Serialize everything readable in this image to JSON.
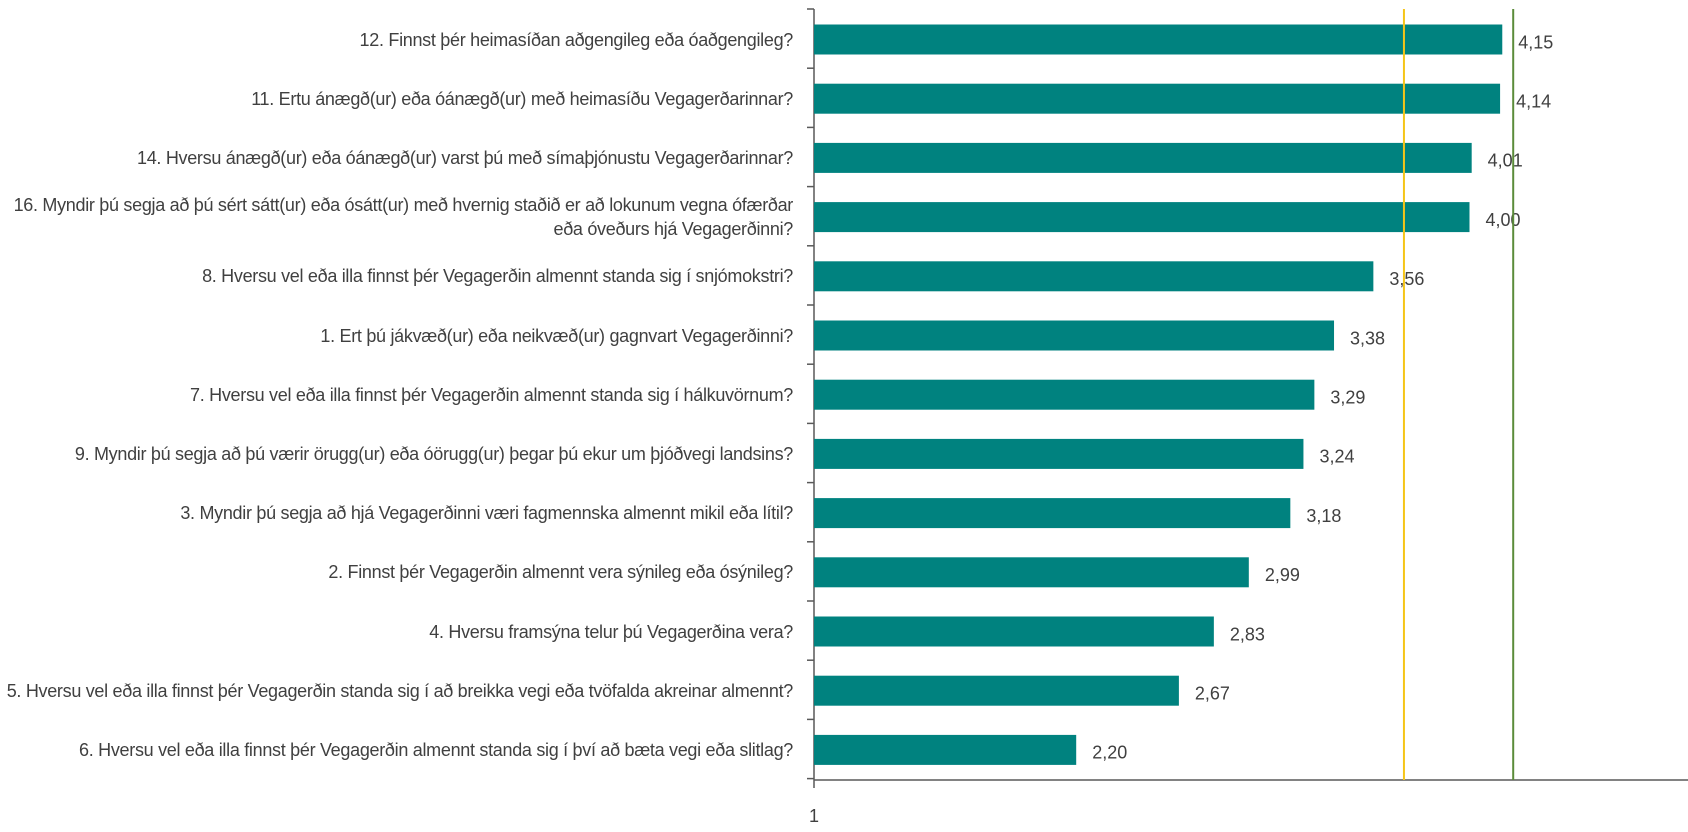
{
  "chart_data": {
    "type": "bar",
    "orientation": "horizontal",
    "categories": [
      "12. Finnst þér heimasíðan aðgengileg eða óaðgengileg?",
      "11. Ertu ánægð(ur) eða óánægð(ur) með heimasíðu Vegagerðarinnar?",
      "14. Hversu ánægð(ur) eða óánægð(ur) varst þú með símaþjónustu Vegagerðarinnar?",
      "16. Myndir þú segja að þú sért sátt(ur) eða ósátt(ur) með hvernig staðið er að lokunum vegna ófærðar eða óveðurs hjá Vegagerðinni?",
      "8. Hversu vel eða illa finnst þér Vegagerðin almennt standa sig í snjómokstri?",
      "1. Ert þú jákvæð(ur) eða neikvæð(ur) gagnvart Vegagerðinni?",
      "7. Hversu vel eða illa finnst þér Vegagerðin almennt standa sig í hálkuvörnum?",
      "9. Myndir þú segja að þú værir örugg(ur) eða óörugg(ur) þegar þú ekur um þjóðvegi landsins?",
      "3. Myndir þú segja að hjá Vegagerðinni væri fagmennska almennt mikil eða lítil?",
      "2. Finnst þér Vegagerðin almennt vera sýnileg eða ósýnileg?",
      "4. Hversu framsýna telur þú Vegagerðina vera?",
      "5. Hversu vel eða illa finnst þér Vegagerðin standa sig í að breikka vegi eða tvöfalda akreinar almennt?",
      "6. Hversu vel eða illa finnst þér Vegagerðin almennt standa sig í því að bæta vegi eða slitlag?"
    ],
    "values": [
      4.15,
      4.14,
      4.01,
      4.0,
      3.56,
      3.38,
      3.29,
      3.24,
      3.18,
      2.99,
      2.83,
      2.67,
      2.2
    ],
    "value_labels": [
      "4,15",
      "4,14",
      "4,01",
      "4,00",
      "3,56",
      "3,38",
      "3,29",
      "3,24",
      "3,18",
      "2,99",
      "2,83",
      "2,67",
      "2,20"
    ],
    "color": "#00827f",
    "xlim": [
      1,
      5
    ],
    "xticks": [
      1
    ],
    "reference_lines": [
      {
        "value": 3.7,
        "color": "#f5c518"
      },
      {
        "value": 4.2,
        "color": "#5b8c3a"
      }
    ]
  }
}
